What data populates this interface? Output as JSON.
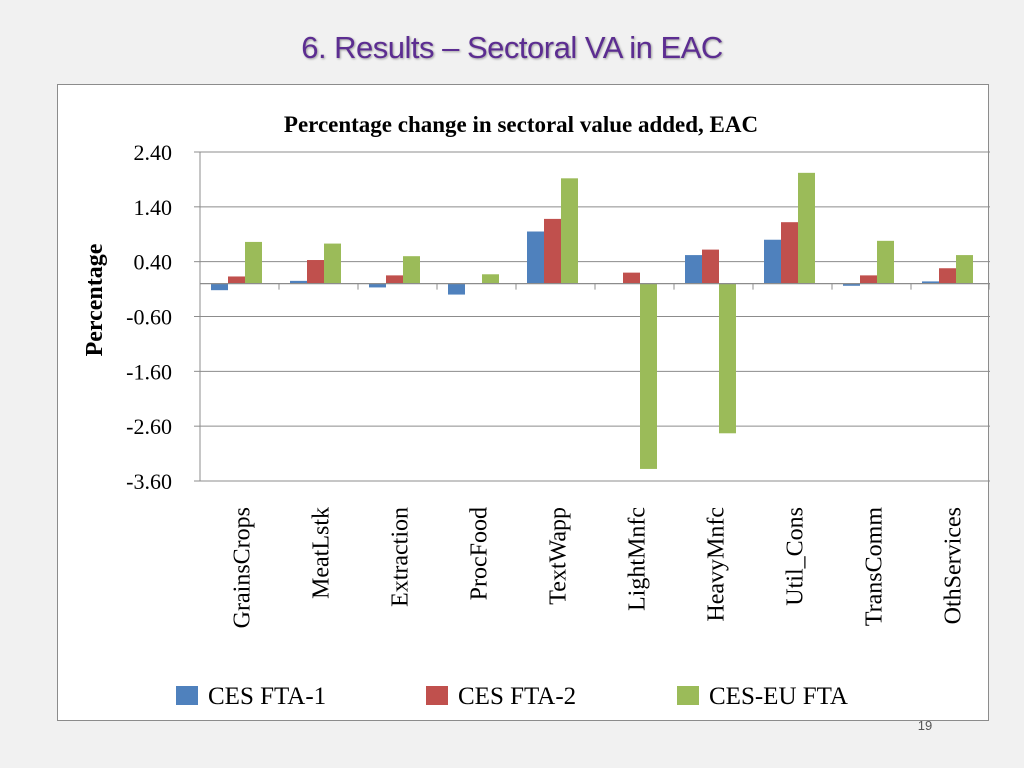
{
  "slide": {
    "title": "6. Results – Sectoral VA in EAC",
    "page_number": "19"
  },
  "chart_data": {
    "type": "bar",
    "title": "Percentage change in sectoral value added, EAC",
    "xlabel": "",
    "ylabel": "Percentage",
    "ylim": [
      -3.6,
      2.4
    ],
    "yticks": [
      2.4,
      1.4,
      0.4,
      -0.6,
      -1.6,
      -2.6,
      -3.6
    ],
    "ytick_labels": [
      "2.40",
      "1.40",
      "0.40",
      "-0.60",
      "-1.60",
      "-2.60",
      "-3.60"
    ],
    "grid": true,
    "legend": "bottom",
    "categories": [
      "GrainsCrops",
      "MeatLstk",
      "Extraction",
      "ProcFood",
      "TextWapp",
      "LightMnfc",
      "HeavyMnfc",
      "Util_Cons",
      "TransComm",
      "OthServices"
    ],
    "series": [
      {
        "name": "CES FTA-1",
        "color": "#4f81bd",
        "values": [
          -0.12,
          0.05,
          -0.07,
          -0.2,
          0.95,
          0.0,
          0.52,
          0.8,
          -0.04,
          0.04
        ]
      },
      {
        "name": "CES FTA-2",
        "color": "#c0504d",
        "values": [
          0.13,
          0.43,
          0.15,
          0.0,
          1.18,
          0.2,
          0.62,
          1.12,
          0.15,
          0.28
        ]
      },
      {
        "name": "CES-EU FTA",
        "color": "#9bbb59",
        "values": [
          0.76,
          0.73,
          0.5,
          0.17,
          1.92,
          -3.38,
          -2.73,
          2.02,
          0.78,
          0.52
        ]
      }
    ]
  }
}
